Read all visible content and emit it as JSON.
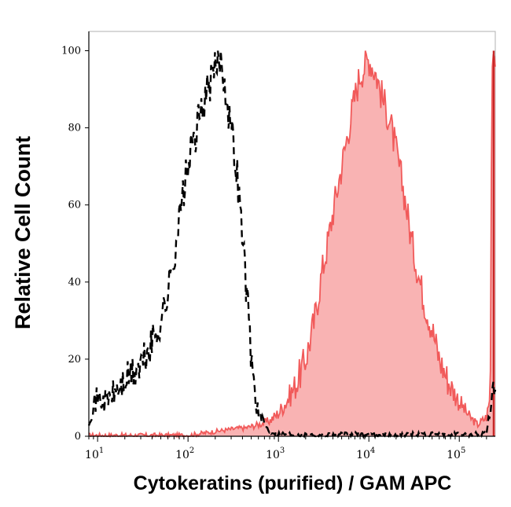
{
  "chart_data": {
    "type": "area",
    "title": "",
    "xlabel": "Cytokeratins (purified) / GAM APC",
    "ylabel": "Relative Cell Count",
    "x_scale": "log",
    "xlim": [
      8,
      250000
    ],
    "ylim": [
      0,
      105
    ],
    "grid": false,
    "legend": "none",
    "yticks": [
      "0",
      "20",
      "40",
      "60",
      "80",
      "100"
    ],
    "ytick_values": [
      0,
      20,
      40,
      60,
      80,
      100
    ],
    "xticks": [
      {
        "value": 10,
        "base": "10",
        "exp": "1"
      },
      {
        "value": 100,
        "base": "10",
        "exp": "2"
      },
      {
        "value": 1000,
        "base": "10",
        "exp": "3"
      },
      {
        "value": 10000,
        "base": "10",
        "exp": "4"
      },
      {
        "value": 100000,
        "base": "10",
        "exp": "5"
      }
    ],
    "series": [
      {
        "style": "dashed-line",
        "color": "#000000",
        "x": [
          8,
          9,
          10,
          12,
          15,
          20,
          30,
          40,
          50,
          60,
          70,
          80,
          90,
          100,
          120,
          150,
          180,
          200,
          230,
          260,
          300,
          350,
          400,
          450,
          500,
          550,
          600,
          700,
          800,
          1000,
          2000,
          5000,
          10000,
          20000,
          50000,
          100000,
          200000,
          230000,
          250000
        ],
        "y": [
          4,
          8,
          10,
          9,
          11,
          14,
          18,
          24,
          30,
          37,
          47,
          56,
          64,
          70,
          78,
          87,
          92,
          95,
          99,
          90,
          80,
          68,
          52,
          36,
          21,
          11,
          6,
          3,
          1,
          0.5,
          0.2,
          0.2,
          0.2,
          0.2,
          0.2,
          0.2,
          0.5,
          10,
          15
        ]
      },
      {
        "style": "filled-area",
        "color": "#f15a5a",
        "fill": "#f9b3b3",
        "x": [
          8,
          100,
          200,
          400,
          600,
          800,
          1000,
          1300,
          1600,
          2000,
          2500,
          3000,
          3500,
          4000,
          5000,
          6000,
          7000,
          8000,
          9000,
          10000,
          11000,
          12000,
          14000,
          17000,
          20000,
          25000,
          30000,
          40000,
          50000,
          60000,
          80000,
          100000,
          130000,
          160000,
          200000,
          220000,
          230000,
          235000
        ],
        "y": [
          0,
          0,
          1,
          2,
          3,
          4,
          6,
          10,
          14,
          20,
          30,
          42,
          50,
          58,
          70,
          80,
          88,
          94,
          96,
          98,
          96,
          94,
          88,
          82,
          74,
          62,
          50,
          36,
          28,
          20,
          13,
          9,
          5,
          3,
          5,
          10,
          100,
          100
        ]
      }
    ]
  }
}
